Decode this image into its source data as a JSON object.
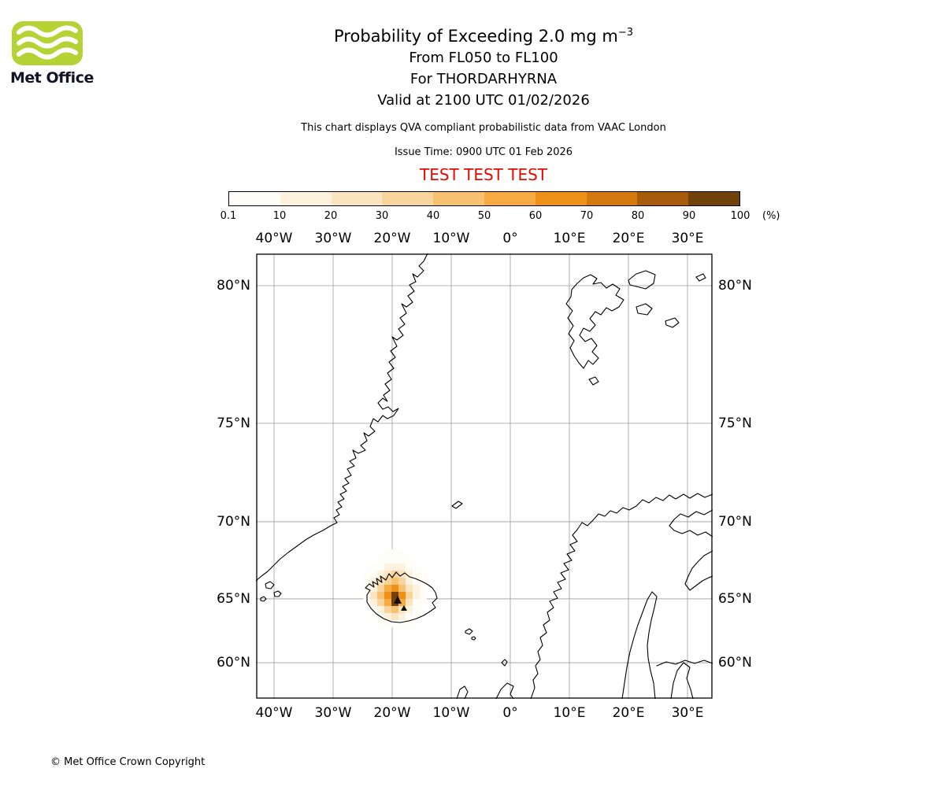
{
  "logo": {
    "brand": "Met Office",
    "green": "#b5d334"
  },
  "header": {
    "title": "Probability of Exceeding 2.0 mg m",
    "title_superscript": "−3",
    "subtitle1": "From FL050 to FL100",
    "subtitle2": "For THORDARHYRNA",
    "subtitle3": "Valid at 2100 UTC 01/02/2026",
    "disclaimer": "This chart displays QVA compliant probabilistic data from VAAC London",
    "issue_time": "Issue Time: 0900 UTC 01 Feb 2026",
    "test_banner": "TEST TEST TEST",
    "test_banner_color": "#e00b00"
  },
  "legend": {
    "unit": "(%)",
    "thresholds": [
      "0.1",
      "10",
      "20",
      "30",
      "40",
      "50",
      "60",
      "70",
      "80",
      "90",
      "100"
    ],
    "colors": [
      "#fffdf8",
      "#fdf2dd",
      "#fbe5c0",
      "#f9d49c",
      "#f7c171",
      "#f5ab42",
      "#ee9118",
      "#d4790e",
      "#a65c0a",
      "#70410a"
    ]
  },
  "map": {
    "grid_color": "#9c9c9c",
    "lon_ticks": [
      {
        "label": "40°W",
        "deg": -40
      },
      {
        "label": "30°W",
        "deg": -30
      },
      {
        "label": "20°W",
        "deg": -20
      },
      {
        "label": "10°W",
        "deg": -10
      },
      {
        "label": "0°",
        "deg": 0
      },
      {
        "label": "10°E",
        "deg": 10
      },
      {
        "label": "20°E",
        "deg": 20
      },
      {
        "label": "30°E",
        "deg": 30
      }
    ],
    "lat_ticks": [
      {
        "label": "80°N",
        "deg": 80
      },
      {
        "label": "75°N",
        "deg": 75
      },
      {
        "label": "70°N",
        "deg": 70
      },
      {
        "label": "65°N",
        "deg": 65
      },
      {
        "label": "60°N",
        "deg": 60
      }
    ],
    "ash_probability_grid": {
      "unit": "%",
      "values": [
        [
          0,
          0,
          0,
          3,
          5,
          3,
          0,
          0,
          0,
          0,
          0
        ],
        [
          0,
          0,
          3,
          6,
          9,
          6,
          3,
          0,
          0,
          0,
          0
        ],
        [
          0,
          3,
          8,
          14,
          18,
          14,
          6,
          3,
          0,
          0,
          0
        ],
        [
          3,
          6,
          15,
          24,
          30,
          24,
          12,
          5,
          3,
          0,
          0
        ],
        [
          3,
          12,
          26,
          38,
          45,
          36,
          18,
          8,
          3,
          0,
          0
        ],
        [
          5,
          18,
          36,
          52,
          60,
          48,
          26,
          12,
          5,
          0,
          0
        ],
        [
          5,
          22,
          45,
          68,
          95,
          62,
          32,
          12,
          5,
          0,
          0
        ],
        [
          3,
          15,
          36,
          55,
          95,
          55,
          22,
          8,
          3,
          0,
          0
        ],
        [
          0,
          8,
          18,
          32,
          45,
          28,
          12,
          5,
          0,
          0,
          0
        ],
        [
          0,
          3,
          8,
          15,
          20,
          12,
          5,
          3,
          0,
          0,
          0
        ],
        [
          0,
          0,
          3,
          6,
          9,
          5,
          3,
          0,
          0,
          0,
          0
        ]
      ]
    }
  },
  "footer": {
    "copyright": "© Met Office Crown Copyright"
  }
}
